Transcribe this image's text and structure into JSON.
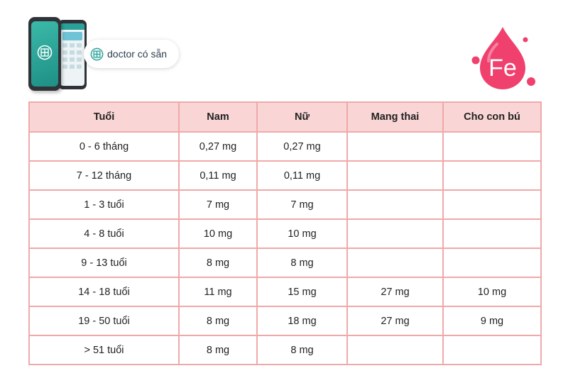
{
  "brand": {
    "name": "doctor có sẵn"
  },
  "badge": {
    "symbol": "Fe"
  },
  "colors": {
    "header_bg": "#f9d5d5",
    "border": "#f0a9a9",
    "drop": "#f0406d",
    "brand_teal": "#2aa198"
  },
  "table": {
    "headers": [
      "Tuổi",
      "Nam",
      "Nữ",
      "Mang thai",
      "Cho con bú"
    ],
    "rows": [
      [
        "0 - 6 tháng",
        "0,27 mg",
        "0,27 mg",
        "",
        ""
      ],
      [
        "7 - 12 tháng",
        "0,11 mg",
        "0,11 mg",
        "",
        ""
      ],
      [
        "1 - 3 tuổi",
        "7 mg",
        "7 mg",
        "",
        ""
      ],
      [
        "4 - 8 tuổi",
        "10 mg",
        "10 mg",
        "",
        ""
      ],
      [
        "9 - 13 tuổi",
        "8 mg",
        "8 mg",
        "",
        ""
      ],
      [
        "14 - 18 tuổi",
        "11 mg",
        "15 mg",
        "27 mg",
        "10 mg"
      ],
      [
        "19 - 50 tuổi",
        "8 mg",
        "18 mg",
        "27 mg",
        "9 mg"
      ],
      [
        "> 51 tuổi",
        "8 mg",
        "8 mg",
        "",
        ""
      ]
    ]
  }
}
